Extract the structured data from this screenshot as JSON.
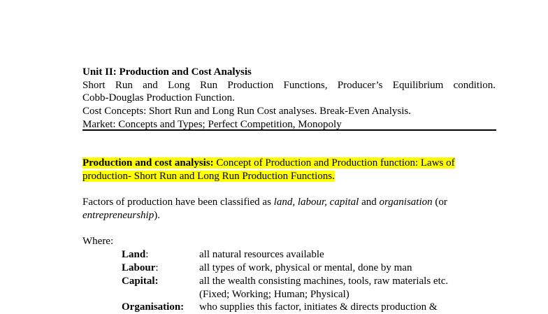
{
  "syllabus": {
    "title": "Unit II: Production and Cost Analysis",
    "line1": "Short Run and Long Run Production Functions, Producer’s Equilibrium condition.",
    "line2": "Cobb-Douglas Production Function.",
    "line3": "Cost Concepts: Short Run and Long Run Cost analyses. Break-Even Analysis.",
    "line4": "Market: Concepts and Types; Perfect Competition, Monopoly"
  },
  "highlight": {
    "bold": "Production and cost analysis:",
    "text": " Concept of Production and Production function: Laws of production- Short Run and Long Run Production Functions.",
    "color": "#ffff00"
  },
  "factors": {
    "p1": "Factors of production have been classified as ",
    "i1": "land, labour, capital",
    "p2": " and ",
    "i2": "organisation",
    "p3": " (or ",
    "i3": "entrepreneurship",
    "p4": ")."
  },
  "where": "Where:",
  "definitions": [
    {
      "term": "Land",
      "sep": ":",
      "def": "all natural resources available"
    },
    {
      "term": "Labour",
      "sep": ":",
      "def": "all types of work, physical or mental, done by man"
    },
    {
      "term": "Capital:",
      "sep": "",
      "def": "all the wealth consisting machines, tools, raw materials etc."
    },
    {
      "term": "",
      "sep": "",
      "def": "(Fixed; Working; Human; Physical)"
    },
    {
      "term": "Organisation:",
      "sep": "",
      "def": "who supplies this factor, initiates & directs production &"
    }
  ]
}
